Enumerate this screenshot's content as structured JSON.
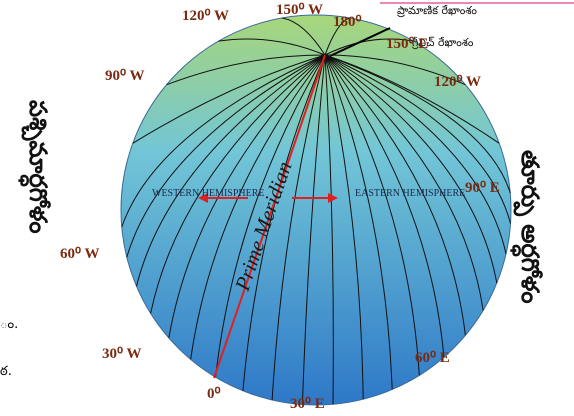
{
  "title_labels": {
    "standard_longitude": "ప్రామాణిక రేఖాంశం",
    "greenwich_longitude": "గ్రీనిచ్ రేఖాంశం"
  },
  "hemispheres": {
    "west_telugu": "పశ్చిమార్ధగోళం",
    "east_telugu": "తూర్పు అర్ధగోళం",
    "western": "WESTERN HEMISPHERE",
    "eastern": "EASTERN HEMISPHERE"
  },
  "prime_meridian": "Prime Meridian",
  "longitudes": [
    "120⁰ W",
    "150⁰ W",
    "180⁰",
    "150⁰ E",
    "90⁰ W",
    "120⁰ W",
    "90⁰ E",
    "60⁰ W",
    "30⁰ W",
    "0⁰",
    "30⁰ E",
    "60⁰ E"
  ],
  "edge_fragments": [
    "ం.",
    "ఠ."
  ]
}
